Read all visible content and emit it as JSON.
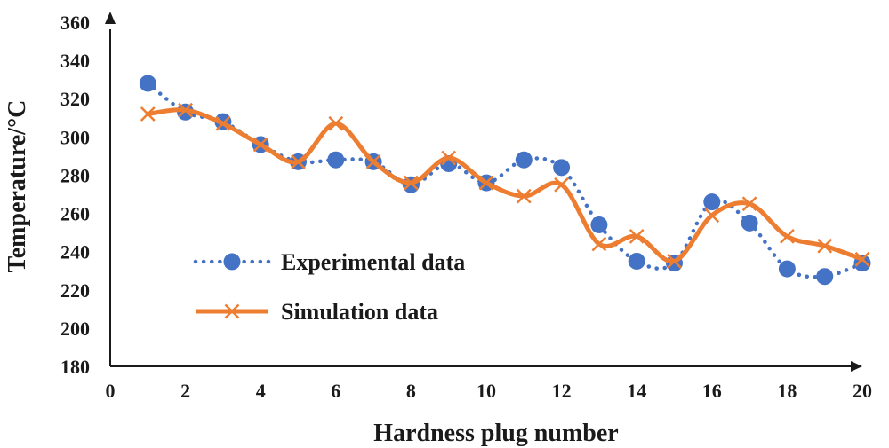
{
  "chart_data": {
    "type": "line",
    "title": "",
    "xlabel": "Hardness plug number",
    "ylabel": "Temperature/°C",
    "xlim": [
      0,
      20
    ],
    "ylim": [
      180,
      360
    ],
    "xticks": [
      0,
      2,
      4,
      6,
      8,
      10,
      12,
      14,
      16,
      18,
      20
    ],
    "yticks": [
      180,
      200,
      220,
      240,
      260,
      280,
      300,
      320,
      340,
      360
    ],
    "grid": false,
    "legend_position": "lower-left",
    "x": [
      1,
      2,
      3,
      4,
      5,
      6,
      7,
      8,
      9,
      10,
      11,
      12,
      13,
      14,
      15,
      16,
      17,
      18,
      19,
      20
    ],
    "series": [
      {
        "name": "Experimental data",
        "style": "dotted-smooth-circle-markers",
        "color": "#4472C4",
        "values": [
          328,
          313,
          308,
          296,
          287,
          288,
          287,
          275,
          286,
          276,
          288,
          284,
          254,
          235,
          234,
          266,
          255,
          231,
          227,
          234
        ]
      },
      {
        "name": "Simulation data",
        "style": "solid-smooth-x-markers",
        "color": "#ED7D31",
        "values": [
          312,
          314,
          307,
          296,
          287,
          307,
          287,
          276,
          289,
          276,
          269,
          275,
          244,
          248,
          235,
          259,
          265,
          248,
          243,
          236
        ]
      }
    ]
  }
}
